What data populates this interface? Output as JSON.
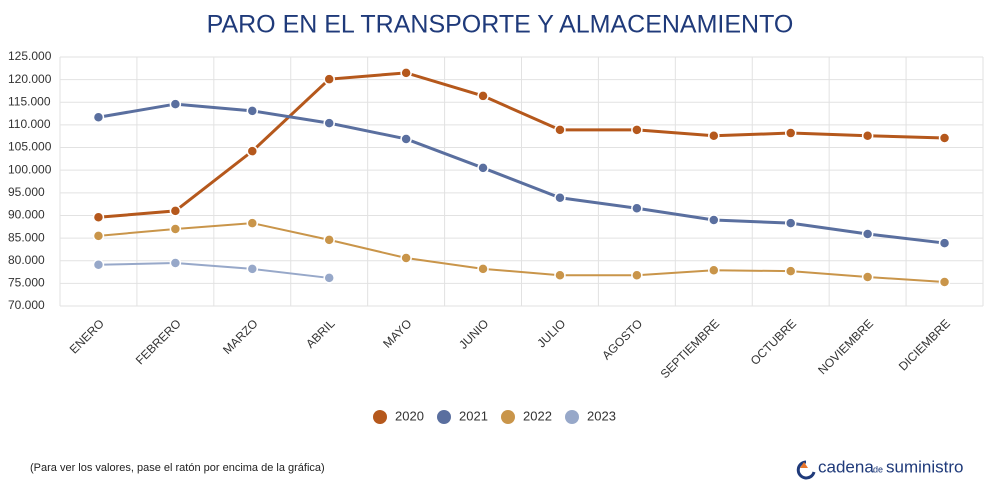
{
  "chart_data": {
    "type": "line",
    "title": "PARO EN EL TRANSPORTE Y ALMACENAMIENTO",
    "categories": [
      "ENERO",
      "FEBRERO",
      "MARZO",
      "ABRIL",
      "MAYO",
      "JUNIO",
      "JULIO",
      "AGOSTO",
      "SEPTIEMBRE",
      "OCTUBRE",
      "NOVIEMBRE",
      "DICIEMBRE"
    ],
    "series": [
      {
        "name": "2020",
        "color": "#b5581c",
        "values": [
          89600,
          91000,
          104200,
          120100,
          121500,
          116400,
          108900,
          108900,
          107600,
          108200,
          107600,
          107100
        ]
      },
      {
        "name": "2021",
        "color": "#5a6f9f",
        "values": [
          111700,
          114600,
          113100,
          110400,
          106900,
          100500,
          93900,
          91600,
          89000,
          88300,
          85900,
          83900
        ]
      },
      {
        "name": "2022",
        "color": "#c9954a",
        "values": [
          85500,
          87000,
          88300,
          84600,
          80600,
          78200,
          76800,
          76800,
          77900,
          77700,
          76400,
          75300
        ]
      },
      {
        "name": "2023",
        "color": "#97a8c9",
        "values": [
          79100,
          79500,
          78200,
          76200,
          null,
          null,
          null,
          null,
          null,
          null,
          null,
          null
        ]
      }
    ],
    "ylim": [
      70000,
      125000
    ],
    "yticks": [
      {
        "value": 70000,
        "label": "70.000"
      },
      {
        "value": 75000,
        "label": "75.000"
      },
      {
        "value": 80000,
        "label": "80.000"
      },
      {
        "value": 85000,
        "label": "85.000"
      },
      {
        "value": 90000,
        "label": "90.000"
      },
      {
        "value": 95000,
        "label": "95.000"
      },
      {
        "value": 100000,
        "label": "100.000"
      },
      {
        "value": 105000,
        "label": "105.000"
      },
      {
        "value": 110000,
        "label": "110.000"
      },
      {
        "value": 115000,
        "label": "115.000"
      },
      {
        "value": 120000,
        "label": "120.000"
      },
      {
        "value": 125000,
        "label": "125.000"
      }
    ],
    "grid": true,
    "legend": "bottom",
    "note": "(Para ver los valores, pase el ratón por encima de la gráfica)",
    "logo": {
      "a": "cadena",
      "b": "de",
      "c": "suministro"
    }
  }
}
